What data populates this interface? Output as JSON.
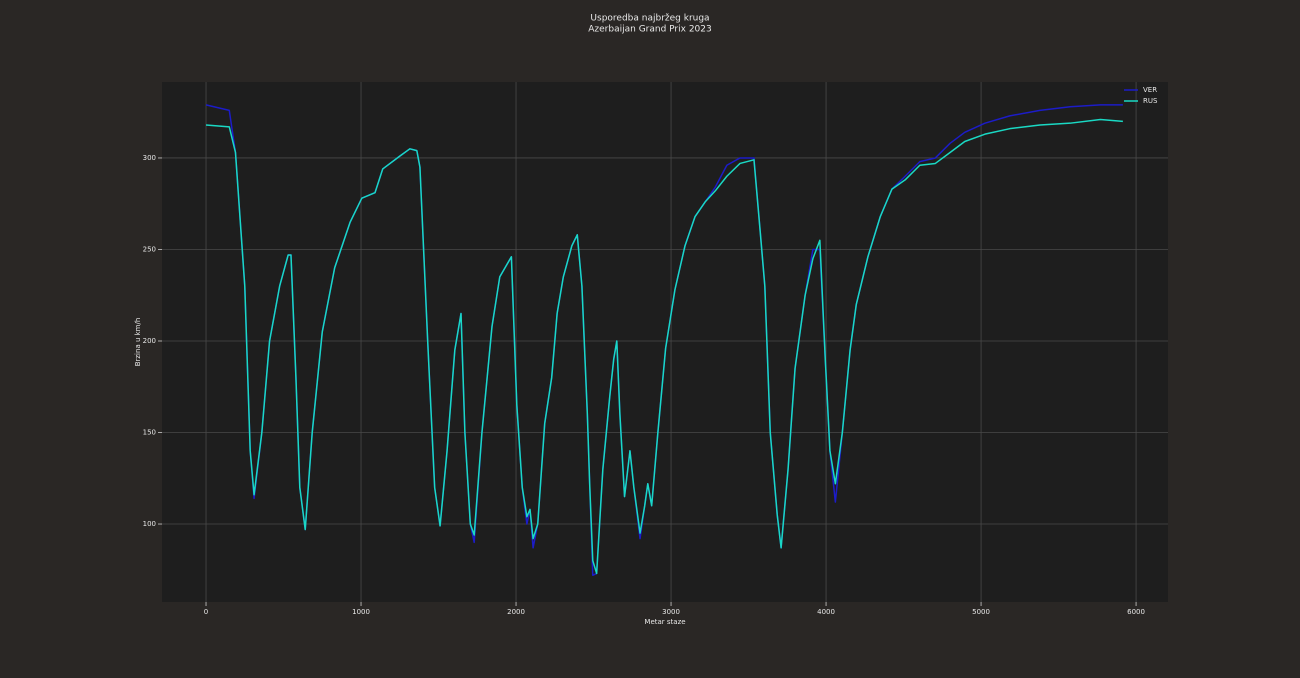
{
  "chart_data": {
    "type": "line",
    "title": "Usporedba najbržeg kruga",
    "subtitle": "Azerbaijan Grand Prix 2023",
    "x_label": "Metar staze",
    "y_label": "Brzina u km/h",
    "x": [
      0,
      150,
      190,
      250,
      285,
      310,
      360,
      410,
      475,
      530,
      548,
      580,
      605,
      640,
      685,
      750,
      830,
      930,
      1005,
      1090,
      1140,
      1250,
      1315,
      1360,
      1380,
      1430,
      1475,
      1510,
      1555,
      1605,
      1645,
      1670,
      1705,
      1730,
      1780,
      1845,
      1895,
      1970,
      2005,
      2040,
      2070,
      2090,
      2110,
      2140,
      2185,
      2230,
      2265,
      2305,
      2360,
      2395,
      2425,
      2460,
      2475,
      2495,
      2520,
      2560,
      2605,
      2630,
      2650,
      2670,
      2700,
      2735,
      2760,
      2800,
      2830,
      2850,
      2875,
      2915,
      2965,
      3025,
      3090,
      3155,
      3220,
      3285,
      3360,
      3445,
      3535,
      3575,
      3605,
      3640,
      3685,
      3710,
      3755,
      3800,
      3865,
      3915,
      3960,
      3995,
      4025,
      4060,
      4105,
      4155,
      4195,
      4270,
      4350,
      4425,
      4510,
      4605,
      4705,
      4800,
      4895,
      5025,
      5185,
      5380,
      5575,
      5770,
      5915
    ],
    "series": [
      {
        "name": "VER",
        "color": "#1c1cc8",
        "values": [
          329,
          326,
          303,
          230,
          140,
          114,
          150,
          200,
          230,
          247,
          247,
          180,
          120,
          97,
          150,
          205,
          240,
          265,
          278,
          281,
          294,
          301,
          305,
          304,
          295,
          200,
          120,
          99,
          140,
          195,
          215,
          150,
          100,
          90,
          150,
          208,
          235,
          246,
          165,
          120,
          100,
          108,
          87,
          100,
          155,
          180,
          215,
          235,
          252,
          258,
          230,
          160,
          122,
          72,
          73,
          130,
          170,
          190,
          200,
          160,
          115,
          140,
          120,
          92,
          110,
          122,
          110,
          150,
          196,
          228,
          252,
          268,
          276,
          284,
          296,
          300,
          300,
          260,
          230,
          150,
          105,
          87,
          130,
          185,
          225,
          250,
          250,
          190,
          140,
          112,
          150,
          195,
          220,
          246,
          268,
          283,
          290,
          298,
          300,
          308,
          314,
          319,
          323,
          326,
          328,
          329,
          329
        ]
      },
      {
        "name": "RUS",
        "color": "#1ad9c4",
        "values": [
          318,
          317,
          303,
          230,
          140,
          116,
          150,
          200,
          230,
          247,
          247,
          180,
          120,
          97,
          150,
          205,
          240,
          265,
          278,
          281,
          294,
          301,
          305,
          304,
          295,
          200,
          120,
          99,
          140,
          195,
          215,
          150,
          100,
          94,
          150,
          208,
          235,
          246,
          165,
          120,
          104,
          108,
          92,
          100,
          155,
          180,
          215,
          235,
          252,
          258,
          230,
          160,
          122,
          80,
          73,
          130,
          170,
          190,
          200,
          160,
          115,
          140,
          120,
          95,
          110,
          122,
          110,
          150,
          196,
          228,
          252,
          268,
          276,
          282,
          290,
          297,
          299,
          260,
          230,
          150,
          105,
          87,
          130,
          185,
          225,
          245,
          255,
          190,
          140,
          122,
          150,
          195,
          220,
          246,
          268,
          283,
          288,
          296,
          297,
          303,
          309,
          313,
          316,
          318,
          319,
          321,
          320
        ]
      }
    ],
    "xlim": [
      -284,
      6206
    ],
    "ylim": [
      57.4,
      341.5
    ],
    "xticks": [
      0,
      1000,
      2000,
      3000,
      4000,
      5000,
      6000
    ],
    "yticks": [
      100,
      150,
      200,
      250,
      300
    ],
    "grid": true,
    "legend": "upper right"
  }
}
